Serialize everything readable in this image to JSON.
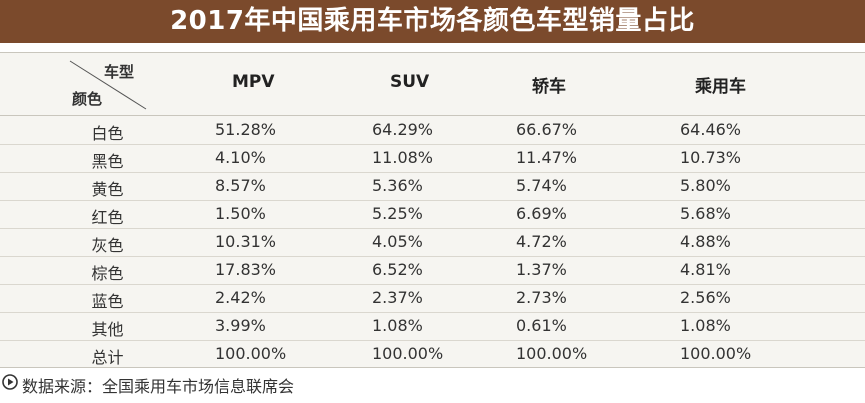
{
  "title": "2017年中国乘用车市场各颜色车型销量占比",
  "header": {
    "corner_top": "车型",
    "corner_bottom": "颜色",
    "columns": [
      "MPV",
      "SUV",
      "轿车",
      "乘用车"
    ]
  },
  "rows": [
    {
      "label": "白色",
      "values": [
        "51.28%",
        "64.29%",
        "66.67%",
        "64.46%"
      ]
    },
    {
      "label": "黑色",
      "values": [
        "4.10%",
        "11.08%",
        "11.47%",
        "10.73%"
      ]
    },
    {
      "label": "黄色",
      "values": [
        "8.57%",
        "5.36%",
        "5.74%",
        "5.80%"
      ]
    },
    {
      "label": "红色",
      "values": [
        "1.50%",
        "5.25%",
        "6.69%",
        "5.68%"
      ]
    },
    {
      "label": "灰色",
      "values": [
        "10.31%",
        "4.05%",
        "4.72%",
        "4.88%"
      ]
    },
    {
      "label": "棕色",
      "values": [
        "17.83%",
        "6.52%",
        "1.37%",
        "4.81%"
      ]
    },
    {
      "label": "蓝色",
      "values": [
        "2.42%",
        "2.37%",
        "2.73%",
        "2.56%"
      ]
    },
    {
      "label": "其他",
      "values": [
        "3.99%",
        "1.08%",
        "0.61%",
        "1.08%"
      ]
    },
    {
      "label": "总计",
      "values": [
        "100.00%",
        "100.00%",
        "100.00%",
        "100.00%"
      ]
    }
  ],
  "footer": {
    "source": "数据来源：全国乘用车市场信息联席会",
    "icon": "play-circle-icon"
  },
  "colors": {
    "title_bg": "#7b4a2c",
    "table_bg": "#f6f5f1"
  },
  "chart_data": {
    "type": "table",
    "title": "2017年中国乘用车市场各颜色车型销量占比",
    "columns": [
      "MPV",
      "SUV",
      "轿车",
      "乘用车"
    ],
    "rows": [
      "白色",
      "黑色",
      "黄色",
      "红色",
      "灰色",
      "棕色",
      "蓝色",
      "其他",
      "总计"
    ],
    "values": [
      [
        51.28,
        64.29,
        66.67,
        64.46
      ],
      [
        4.1,
        11.08,
        11.47,
        10.73
      ],
      [
        8.57,
        5.36,
        5.74,
        5.8
      ],
      [
        1.5,
        5.25,
        6.69,
        5.68
      ],
      [
        10.31,
        4.05,
        4.72,
        4.88
      ],
      [
        17.83,
        6.52,
        1.37,
        4.81
      ],
      [
        2.42,
        2.37,
        2.73,
        2.56
      ],
      [
        3.99,
        1.08,
        0.61,
        1.08
      ],
      [
        100.0,
        100.0,
        100.0,
        100.0
      ]
    ]
  }
}
